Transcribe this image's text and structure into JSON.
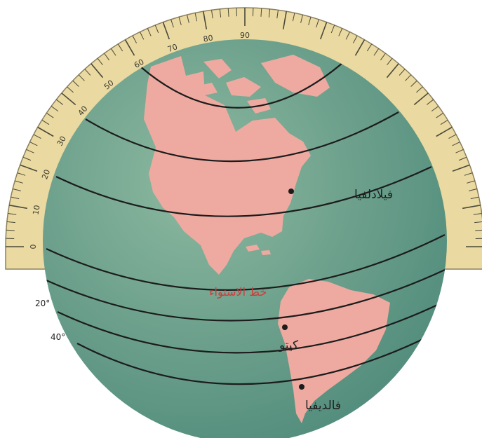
{
  "protractor": {
    "scale_labels": [
      "0",
      "10",
      "20",
      "30",
      "40",
      "50",
      "60",
      "70",
      "80",
      "90"
    ],
    "fill_color": "#ead9a0",
    "tick_color": "#4a4a3a"
  },
  "side_degree_labels": [
    "20°",
    "40°"
  ],
  "equator_label": "خط الاستواء",
  "equator_label_color": "#d23b3b",
  "cities": [
    {
      "name": "فيلادلفيا"
    },
    {
      "name": "كيتو"
    },
    {
      "name": "فالديفيا"
    }
  ],
  "colors": {
    "ocean": "#4f8a7a",
    "ocean_light": "#8db9a0",
    "land": "#eeaaa0",
    "latitude_lines": "#1c1c1c"
  }
}
